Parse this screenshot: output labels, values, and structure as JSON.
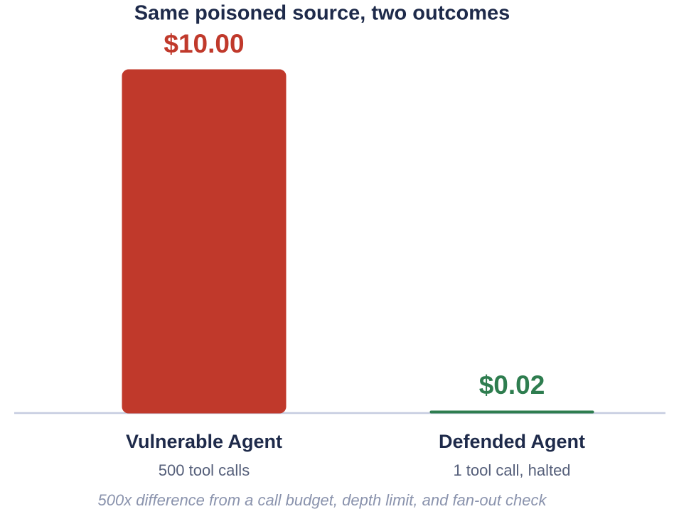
{
  "chart_data": {
    "type": "bar",
    "title": "Same poisoned source, two outcomes",
    "categories": [
      "Vulnerable Agent",
      "Defended Agent"
    ],
    "category_details": [
      "500 tool calls",
      "1 tool call, halted"
    ],
    "values": [
      10.0,
      0.02
    ],
    "value_labels": [
      "$10.00",
      "$0.02"
    ],
    "colors": [
      "#c0392b",
      "#2e7d4f"
    ],
    "ylim": [
      0,
      10
    ],
    "footnote": "500x difference from a call budget, depth limit, and fan-out check"
  }
}
